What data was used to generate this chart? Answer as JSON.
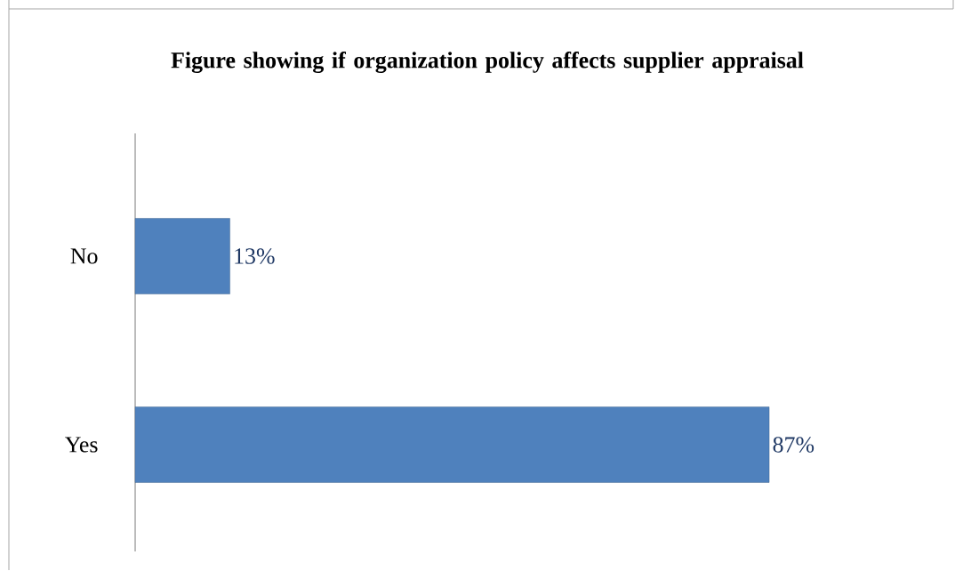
{
  "chart_data": {
    "type": "bar",
    "orientation": "horizontal",
    "title": "Figure showing if organization policy affects supplier appraisal",
    "categories": [
      "No",
      "Yes"
    ],
    "values": [
      13,
      87
    ],
    "value_labels": [
      "13%",
      "87%"
    ],
    "color": "#4f81bd",
    "tick_labels": "y",
    "grid": false
  }
}
